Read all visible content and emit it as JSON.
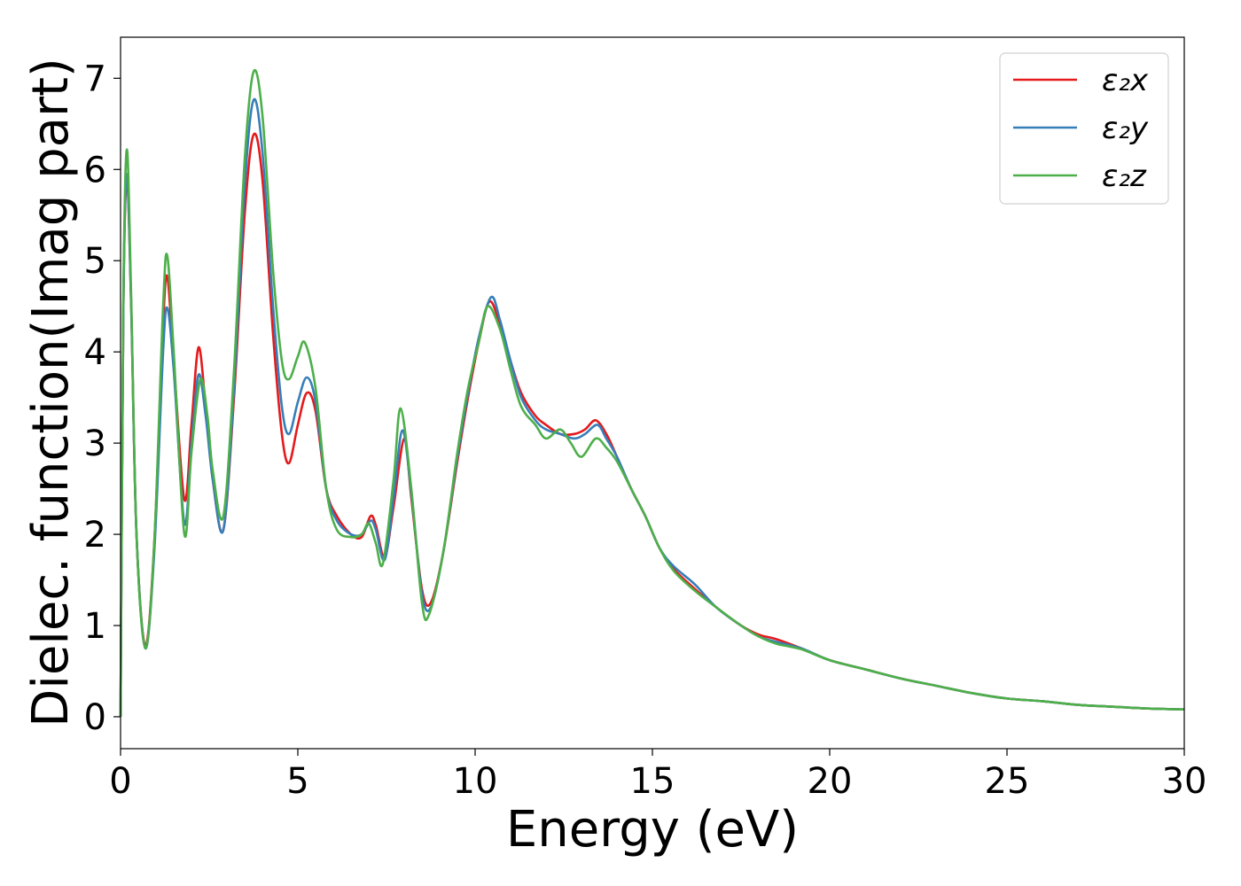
{
  "chart_data": {
    "type": "line",
    "xlabel": "Energy (eV)",
    "ylabel": "Dielec. function(Imag part)",
    "xlim": [
      0,
      30
    ],
    "ylim": [
      -0.35,
      7.45
    ],
    "xticks": [
      0,
      5,
      10,
      15,
      20,
      25,
      30
    ],
    "yticks": [
      0,
      1,
      2,
      3,
      4,
      5,
      6,
      7
    ],
    "grid": false,
    "legend_position": "top-right",
    "series": [
      {
        "name": "ε₂x",
        "color": "#e41a1c",
        "points": [
          [
            0,
            0
          ],
          [
            0.08,
            4.5
          ],
          [
            0.18,
            5.9
          ],
          [
            0.3,
            4.5
          ],
          [
            0.45,
            2.0
          ],
          [
            0.7,
            0.78
          ],
          [
            0.95,
            1.9
          ],
          [
            1.2,
            4.3
          ],
          [
            1.32,
            4.82
          ],
          [
            1.5,
            3.9
          ],
          [
            1.8,
            2.38
          ],
          [
            2.0,
            3.2
          ],
          [
            2.2,
            4.05
          ],
          [
            2.4,
            3.4
          ],
          [
            2.6,
            2.6
          ],
          [
            2.9,
            2.05
          ],
          [
            3.2,
            3.5
          ],
          [
            3.5,
            5.5
          ],
          [
            3.75,
            6.38
          ],
          [
            4.0,
            5.9
          ],
          [
            4.3,
            4.2
          ],
          [
            4.55,
            3.1
          ],
          [
            4.75,
            2.78
          ],
          [
            5.0,
            3.2
          ],
          [
            5.25,
            3.55
          ],
          [
            5.5,
            3.35
          ],
          [
            5.8,
            2.5
          ],
          [
            6.1,
            2.2
          ],
          [
            6.5,
            2.0
          ],
          [
            6.8,
            1.97
          ],
          [
            7.05,
            2.2
          ],
          [
            7.2,
            2.1
          ],
          [
            7.45,
            1.75
          ],
          [
            7.7,
            2.3
          ],
          [
            8.0,
            3.05
          ],
          [
            8.2,
            2.4
          ],
          [
            8.5,
            1.4
          ],
          [
            8.75,
            1.25
          ],
          [
            9.1,
            1.8
          ],
          [
            9.5,
            2.8
          ],
          [
            9.8,
            3.5
          ],
          [
            10.1,
            4.1
          ],
          [
            10.4,
            4.55
          ],
          [
            10.7,
            4.3
          ],
          [
            11.0,
            3.9
          ],
          [
            11.3,
            3.55
          ],
          [
            11.7,
            3.3
          ],
          [
            12.0,
            3.2
          ],
          [
            12.4,
            3.1
          ],
          [
            12.8,
            3.1
          ],
          [
            13.1,
            3.15
          ],
          [
            13.4,
            3.25
          ],
          [
            13.7,
            3.1
          ],
          [
            14.0,
            2.85
          ],
          [
            14.4,
            2.5
          ],
          [
            14.8,
            2.2
          ],
          [
            15.2,
            1.85
          ],
          [
            15.6,
            1.62
          ],
          [
            16.2,
            1.4
          ],
          [
            16.8,
            1.2
          ],
          [
            17.5,
            1.0
          ],
          [
            18.0,
            0.9
          ],
          [
            18.5,
            0.85
          ],
          [
            19.2,
            0.75
          ],
          [
            20.0,
            0.62
          ],
          [
            21,
            0.52
          ],
          [
            22,
            0.42
          ],
          [
            23,
            0.34
          ],
          [
            24,
            0.26
          ],
          [
            25,
            0.2
          ],
          [
            26,
            0.17
          ],
          [
            27,
            0.13
          ],
          [
            28,
            0.11
          ],
          [
            29,
            0.09
          ],
          [
            30,
            0.08
          ]
        ]
      },
      {
        "name": "ε₂y",
        "color": "#377eb8",
        "points": [
          [
            0,
            0
          ],
          [
            0.08,
            4.5
          ],
          [
            0.18,
            5.95
          ],
          [
            0.3,
            4.5
          ],
          [
            0.45,
            2.0
          ],
          [
            0.7,
            0.75
          ],
          [
            0.95,
            1.8
          ],
          [
            1.2,
            4.0
          ],
          [
            1.32,
            4.48
          ],
          [
            1.5,
            3.8
          ],
          [
            1.8,
            2.12
          ],
          [
            2.0,
            3.0
          ],
          [
            2.2,
            3.75
          ],
          [
            2.4,
            3.3
          ],
          [
            2.6,
            2.6
          ],
          [
            2.9,
            2.05
          ],
          [
            3.2,
            3.6
          ],
          [
            3.5,
            5.8
          ],
          [
            3.75,
            6.76
          ],
          [
            4.0,
            6.2
          ],
          [
            4.3,
            4.5
          ],
          [
            4.55,
            3.4
          ],
          [
            4.75,
            3.1
          ],
          [
            5.0,
            3.45
          ],
          [
            5.25,
            3.72
          ],
          [
            5.5,
            3.45
          ],
          [
            5.8,
            2.5
          ],
          [
            6.1,
            2.15
          ],
          [
            6.5,
            2.0
          ],
          [
            6.8,
            2.0
          ],
          [
            7.05,
            2.15
          ],
          [
            7.2,
            2.05
          ],
          [
            7.45,
            1.72
          ],
          [
            7.7,
            2.4
          ],
          [
            7.95,
            3.14
          ],
          [
            8.2,
            2.45
          ],
          [
            8.5,
            1.35
          ],
          [
            8.75,
            1.2
          ],
          [
            9.1,
            1.8
          ],
          [
            9.5,
            2.85
          ],
          [
            9.8,
            3.55
          ],
          [
            10.1,
            4.15
          ],
          [
            10.45,
            4.6
          ],
          [
            10.7,
            4.35
          ],
          [
            11.0,
            3.9
          ],
          [
            11.3,
            3.5
          ],
          [
            11.7,
            3.25
          ],
          [
            12.0,
            3.15
          ],
          [
            12.4,
            3.1
          ],
          [
            12.8,
            3.05
          ],
          [
            13.1,
            3.1
          ],
          [
            13.45,
            3.2
          ],
          [
            13.7,
            3.05
          ],
          [
            14.0,
            2.85
          ],
          [
            14.4,
            2.5
          ],
          [
            14.8,
            2.2
          ],
          [
            15.2,
            1.85
          ],
          [
            15.6,
            1.65
          ],
          [
            16.2,
            1.45
          ],
          [
            16.8,
            1.2
          ],
          [
            17.5,
            1.0
          ],
          [
            18.0,
            0.88
          ],
          [
            18.5,
            0.82
          ],
          [
            19.2,
            0.75
          ],
          [
            20.0,
            0.62
          ],
          [
            21,
            0.52
          ],
          [
            22,
            0.42
          ],
          [
            23,
            0.34
          ],
          [
            24,
            0.26
          ],
          [
            25,
            0.2
          ],
          [
            26,
            0.17
          ],
          [
            27,
            0.13
          ],
          [
            28,
            0.11
          ],
          [
            29,
            0.09
          ],
          [
            30,
            0.08
          ]
        ]
      },
      {
        "name": "ε₂z",
        "color": "#4daf4a",
        "points": [
          [
            0,
            0
          ],
          [
            0.08,
            4.6
          ],
          [
            0.18,
            6.22
          ],
          [
            0.3,
            4.6
          ],
          [
            0.45,
            2.0
          ],
          [
            0.7,
            0.75
          ],
          [
            0.95,
            1.9
          ],
          [
            1.2,
            4.5
          ],
          [
            1.32,
            5.05
          ],
          [
            1.5,
            4.0
          ],
          [
            1.8,
            2.0
          ],
          [
            2.0,
            2.9
          ],
          [
            2.25,
            3.7
          ],
          [
            2.45,
            3.3
          ],
          [
            2.6,
            2.7
          ],
          [
            2.9,
            2.2
          ],
          [
            3.2,
            3.8
          ],
          [
            3.5,
            6.1
          ],
          [
            3.75,
            7.07
          ],
          [
            4.0,
            6.6
          ],
          [
            4.3,
            4.9
          ],
          [
            4.55,
            3.9
          ],
          [
            4.75,
            3.7
          ],
          [
            5.0,
            3.95
          ],
          [
            5.2,
            4.1
          ],
          [
            5.5,
            3.6
          ],
          [
            5.8,
            2.5
          ],
          [
            6.1,
            2.05
          ],
          [
            6.5,
            1.97
          ],
          [
            6.8,
            2.0
          ],
          [
            7.0,
            2.12
          ],
          [
            7.2,
            1.9
          ],
          [
            7.4,
            1.68
          ],
          [
            7.7,
            2.6
          ],
          [
            7.9,
            3.38
          ],
          [
            8.2,
            2.5
          ],
          [
            8.5,
            1.25
          ],
          [
            8.7,
            1.12
          ],
          [
            9.1,
            1.8
          ],
          [
            9.5,
            2.9
          ],
          [
            9.8,
            3.6
          ],
          [
            10.1,
            4.1
          ],
          [
            10.35,
            4.5
          ],
          [
            10.7,
            4.25
          ],
          [
            11.0,
            3.8
          ],
          [
            11.3,
            3.4
          ],
          [
            11.7,
            3.2
          ],
          [
            12.0,
            3.05
          ],
          [
            12.4,
            3.15
          ],
          [
            12.7,
            3.0
          ],
          [
            13.0,
            2.85
          ],
          [
            13.4,
            3.05
          ],
          [
            13.7,
            2.95
          ],
          [
            14.0,
            2.8
          ],
          [
            14.4,
            2.5
          ],
          [
            14.8,
            2.2
          ],
          [
            15.2,
            1.85
          ],
          [
            15.6,
            1.6
          ],
          [
            16.2,
            1.38
          ],
          [
            16.8,
            1.2
          ],
          [
            17.5,
            1.0
          ],
          [
            18.0,
            0.88
          ],
          [
            18.5,
            0.8
          ],
          [
            19.2,
            0.74
          ],
          [
            20.0,
            0.62
          ],
          [
            21,
            0.52
          ],
          [
            22,
            0.42
          ],
          [
            23,
            0.34
          ],
          [
            24,
            0.26
          ],
          [
            25,
            0.2
          ],
          [
            26,
            0.17
          ],
          [
            27,
            0.13
          ],
          [
            28,
            0.11
          ],
          [
            29,
            0.09
          ],
          [
            30,
            0.08
          ]
        ]
      }
    ]
  }
}
